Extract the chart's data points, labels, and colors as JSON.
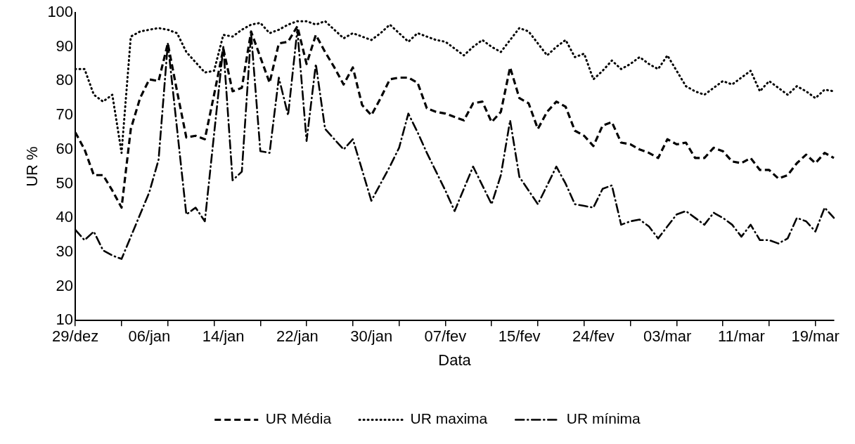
{
  "chart_data": {
    "type": "line",
    "xlabel": "Data",
    "ylabel": "UR %",
    "categories": [
      "29/dez",
      null,
      null,
      null,
      null,
      null,
      null,
      null,
      "06/jan",
      null,
      null,
      null,
      null,
      null,
      null,
      null,
      "14/jan",
      null,
      null,
      null,
      null,
      null,
      null,
      null,
      "22/jan",
      null,
      null,
      null,
      null,
      null,
      null,
      null,
      "30/jan",
      null,
      null,
      null,
      null,
      null,
      null,
      null,
      "07/fev",
      null,
      null,
      null,
      null,
      null,
      null,
      null,
      "15/fev",
      null,
      null,
      null,
      null,
      null,
      null,
      null,
      "24/fev",
      null,
      null,
      null,
      null,
      null,
      null,
      null,
      "03/mar",
      null,
      null,
      null,
      null,
      null,
      null,
      null,
      "11/mar",
      null,
      null,
      null,
      null,
      null,
      null,
      null,
      "19/mar",
      null,
      null
    ],
    "ylim": [
      10,
      100
    ],
    "yticks": [
      10,
      20,
      30,
      40,
      50,
      60,
      70,
      80,
      90,
      100
    ],
    "grid": false,
    "legend": "bottom",
    "marker": "none",
    "series": [
      {
        "name": "UR Média",
        "color": "#000000",
        "line_style": "dashed",
        "values": [
          65,
          60,
          52.5,
          52.5,
          48,
          43,
          66,
          75,
          80.5,
          80,
          91,
          77,
          63.5,
          64,
          63,
          76,
          89.5,
          77,
          78,
          94.5,
          87,
          79.5,
          91,
          91.5,
          96,
          85,
          93.5,
          88.5,
          84,
          79,
          84,
          73,
          70,
          75,
          80.5,
          81,
          81,
          79.5,
          72,
          71,
          70.5,
          69.5,
          68.5,
          73.5,
          74,
          68,
          71,
          84,
          75,
          73.5,
          66,
          71,
          74,
          72.5,
          65.5,
          64,
          61,
          67,
          68,
          62,
          61.5,
          60,
          59,
          57.5,
          63,
          61.5,
          62,
          57.5,
          57.5,
          60.5,
          59.5,
          56.5,
          56,
          57.5,
          54,
          54,
          51.5,
          52.5,
          56,
          58.5,
          56,
          59,
          57.5
        ]
      },
      {
        "name": "UR maxima",
        "color": "#000000",
        "line_style": "dotted",
        "values": [
          83.5,
          83.5,
          76,
          74,
          76,
          59,
          93,
          94.5,
          95,
          95.5,
          95,
          94,
          88.5,
          85.5,
          82.5,
          83,
          93.5,
          93,
          95,
          96.5,
          97,
          94,
          95,
          96.5,
          97.5,
          97.5,
          96.5,
          97.5,
          95,
          92.5,
          94,
          93,
          92,
          94,
          96.5,
          94,
          91.5,
          94,
          93,
          92,
          91.5,
          89.5,
          87.5,
          90,
          92,
          90,
          88.5,
          92,
          95.5,
          94.5,
          91,
          87.5,
          90,
          92,
          87,
          88,
          80.5,
          83,
          86,
          83.5,
          85,
          87,
          85,
          83.5,
          87.5,
          83,
          78.5,
          77,
          76,
          78,
          80,
          79,
          81,
          83,
          77,
          80,
          78,
          76,
          78.5,
          77,
          75,
          77.5,
          77
        ]
      },
      {
        "name": "UR mínima",
        "color": "#000000",
        "line_style": "dashdot",
        "values": [
          36.5,
          33.5,
          36,
          30.5,
          29,
          28,
          34.5,
          41,
          47.5,
          57,
          91,
          66,
          41,
          43,
          39,
          64.5,
          90,
          51,
          53.5,
          94,
          59.5,
          59,
          81,
          70,
          95,
          62.5,
          85,
          66,
          63,
          60,
          63,
          54,
          45,
          50,
          55,
          60.5,
          70.5,
          65,
          59,
          53.5,
          48,
          42,
          48.5,
          55,
          49.5,
          44,
          52.5,
          68.5,
          52,
          48,
          44,
          49.5,
          55,
          50,
          44,
          43.5,
          43,
          48.5,
          49.5,
          38,
          39,
          39.5,
          37.5,
          34,
          37.5,
          41,
          42,
          40,
          38,
          41.5,
          40,
          38,
          34.5,
          38,
          33.5,
          33.5,
          32.5,
          34,
          40,
          39,
          36,
          43,
          40
        ]
      }
    ]
  }
}
